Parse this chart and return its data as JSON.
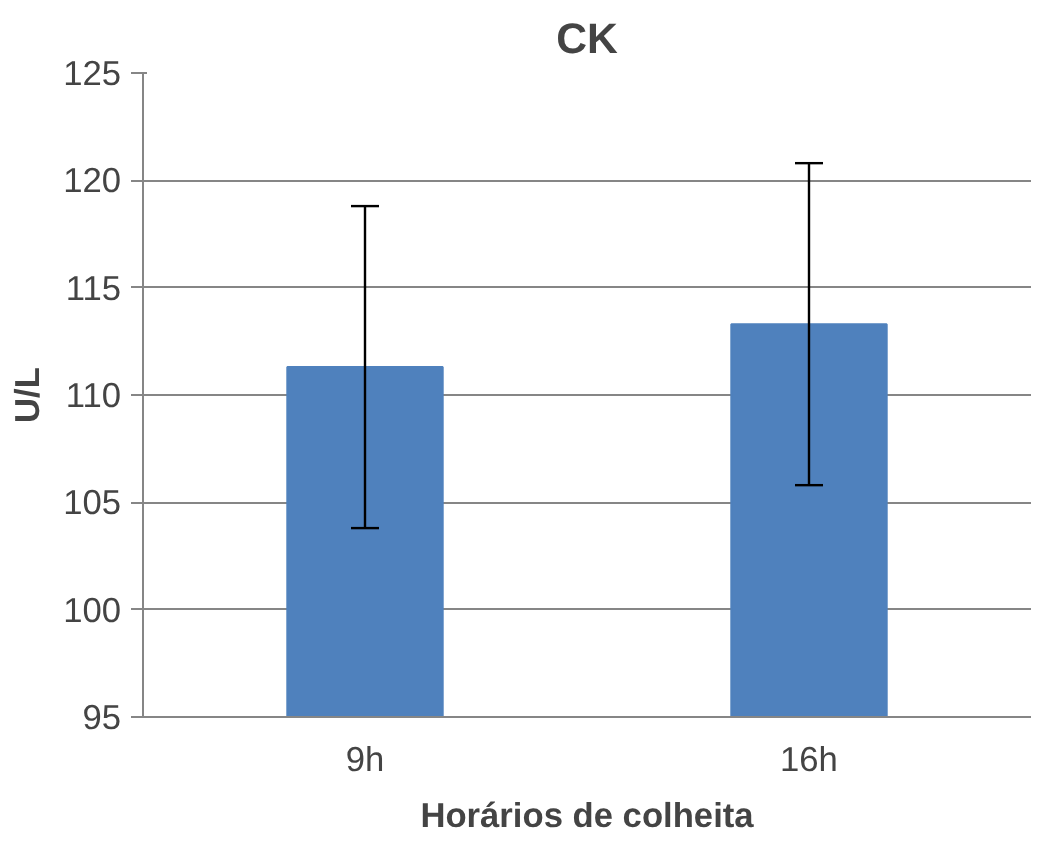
{
  "chart_data": {
    "type": "bar",
    "title": "CK",
    "xlabel": "Horários de colheita",
    "ylabel": "U/L",
    "categories": [
      "9h",
      "16h"
    ],
    "series": [
      {
        "color": "#4f81bd",
        "values": [
          111.3,
          113.3
        ],
        "errors": [
          7.5,
          7.5
        ]
      }
    ],
    "ylim": [
      95,
      125
    ],
    "yticks": [
      95,
      100,
      105,
      110,
      115,
      120,
      125
    ],
    "grid": "y"
  }
}
